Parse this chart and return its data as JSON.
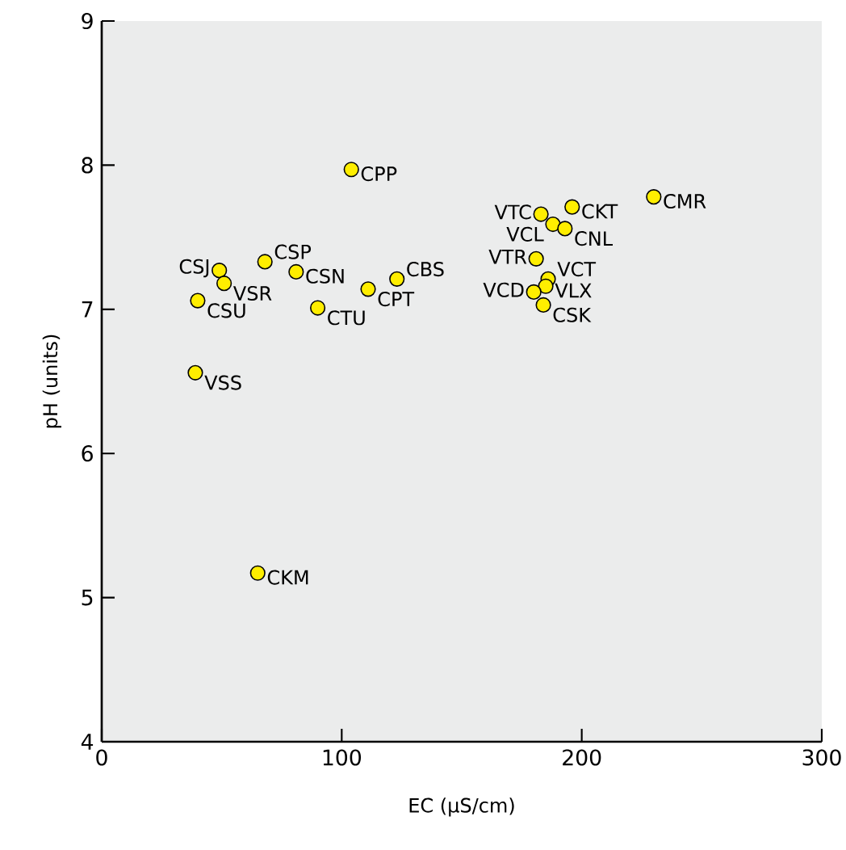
{
  "chart_data": {
    "type": "scatter",
    "xlabel": "EC (µS/cm)",
    "ylabel": "pH (units)",
    "x": [
      104,
      68,
      49,
      51,
      81,
      40,
      90,
      111,
      123,
      39,
      65,
      183,
      196,
      230,
      188,
      193,
      181,
      186,
      185,
      180,
      184
    ],
    "values": [
      7.97,
      7.33,
      7.27,
      7.18,
      7.26,
      7.06,
      7.01,
      7.14,
      7.21,
      6.56,
      5.17,
      7.66,
      7.71,
      7.78,
      7.59,
      7.56,
      7.35,
      7.21,
      7.16,
      7.12,
      7.03
    ],
    "color": "#ffee00",
    "grid": false,
    "xlim": [
      0,
      300
    ],
    "ylim": [
      4,
      9
    ],
    "xticks": [
      0,
      100,
      200,
      300
    ],
    "yticks": [
      4,
      5,
      6,
      7,
      8,
      9
    ],
    "annotations": [
      {
        "text": "CPP",
        "x": 104,
        "y": 7.97
      },
      {
        "text": "CSP",
        "x": 68,
        "y": 7.33
      },
      {
        "text": "CSJ",
        "x": 49,
        "y": 7.27
      },
      {
        "text": "VSR",
        "x": 51,
        "y": 7.18
      },
      {
        "text": "CSN",
        "x": 81,
        "y": 7.26
      },
      {
        "text": "CSU",
        "x": 40,
        "y": 7.06
      },
      {
        "text": "CTU",
        "x": 90,
        "y": 7.01
      },
      {
        "text": "CPT",
        "x": 111,
        "y": 7.14
      },
      {
        "text": "CBS",
        "x": 123,
        "y": 7.21
      },
      {
        "text": "VSS",
        "x": 39,
        "y": 6.56
      },
      {
        "text": "CKM",
        "x": 65,
        "y": 5.17
      },
      {
        "text": "VTC",
        "x": 183,
        "y": 7.66
      },
      {
        "text": "CKT",
        "x": 196,
        "y": 7.71
      },
      {
        "text": "CMR",
        "x": 230,
        "y": 7.78
      },
      {
        "text": "VCL",
        "x": 188,
        "y": 7.59
      },
      {
        "text": "CNL",
        "x": 193,
        "y": 7.56
      },
      {
        "text": "VTR",
        "x": 181,
        "y": 7.35
      },
      {
        "text": "VCT",
        "x": 186,
        "y": 7.21
      },
      {
        "text": "VLX",
        "x": 185,
        "y": 7.16
      },
      {
        "text": "VCD",
        "x": 180,
        "y": 7.12
      },
      {
        "text": "CSK",
        "x": 184,
        "y": 7.03
      }
    ]
  }
}
